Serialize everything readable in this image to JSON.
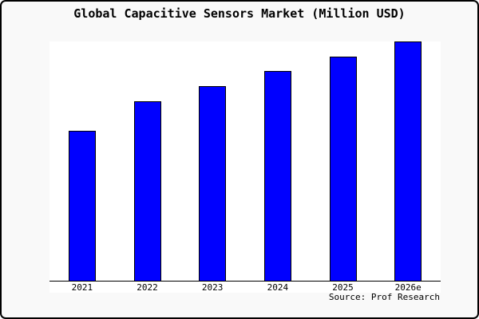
{
  "window": {
    "background_color": "#f9f9f9",
    "border_color": "#000000"
  },
  "chart_data": {
    "type": "bar",
    "title": "Global Capacitive Sensors Market (Million USD)",
    "categories": [
      "2021",
      "2022",
      "2023",
      "2024",
      "2025",
      "2026e"
    ],
    "values": [
      62.7,
      75.0,
      81.3,
      87.7,
      93.7,
      100.0
    ],
    "xlabel": "",
    "ylabel": "",
    "ylim": [
      0,
      100
    ],
    "y_axis_labels_shown": false,
    "grid": false,
    "legend": false,
    "bar_color": "#0000ff",
    "bar_border_color": "#000000",
    "plot_background": "#ffffff",
    "axis_color": "#000000",
    "note": "No y-axis scale is shown; values are bar heights as percent of the tallest (2026e) bar."
  },
  "footer": {
    "source_label": "Source: Prof Research"
  }
}
